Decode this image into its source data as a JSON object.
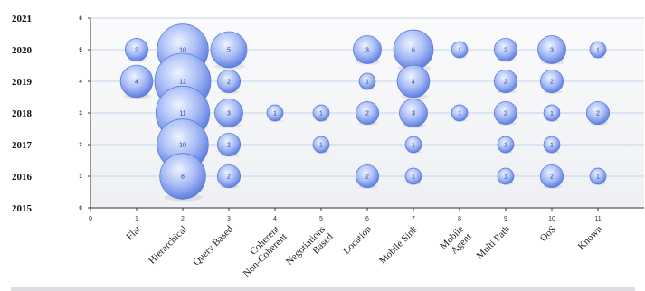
{
  "chart_data": {
    "type": "bubble",
    "title": "",
    "xlabel": "",
    "ylabel": "",
    "x_ticks": [
      0,
      1,
      2,
      3,
      4,
      5,
      6,
      7,
      8,
      9,
      10,
      11
    ],
    "y_ticks": [
      0,
      1,
      2,
      3,
      4,
      5,
      6
    ],
    "xlim": [
      0,
      12
    ],
    "ylim": [
      0,
      6
    ],
    "year_labels": [
      "2015",
      "2016",
      "2017",
      "2018",
      "2019",
      "2020",
      "2021"
    ],
    "categories": [
      "Flat",
      "Hierarchical",
      "Query Based",
      "Coherent Non-Coherent",
      "Negotiations Based",
      "Location",
      "Mobile Sink",
      "Mobile Agent",
      "Multi Path",
      "QoS",
      "Known"
    ],
    "grid": true,
    "colors": {
      "bubble": "#9fb6f5",
      "bubble_dark": "#5c7de0",
      "grid": "#c7d3ea",
      "plot_bg": "#f7f8fa"
    },
    "points": [
      {
        "x": 1,
        "y": 5,
        "size": 2
      },
      {
        "x": 1,
        "y": 4,
        "size": 4
      },
      {
        "x": 2,
        "y": 5,
        "size": 10
      },
      {
        "x": 2,
        "y": 4,
        "size": 12
      },
      {
        "x": 2,
        "y": 3,
        "size": 11
      },
      {
        "x": 2,
        "y": 2,
        "size": 10
      },
      {
        "x": 2,
        "y": 1,
        "size": 8
      },
      {
        "x": 3,
        "y": 5,
        "size": 5
      },
      {
        "x": 3,
        "y": 4,
        "size": 2
      },
      {
        "x": 3,
        "y": 3,
        "size": 3
      },
      {
        "x": 3,
        "y": 2,
        "size": 2
      },
      {
        "x": 3,
        "y": 1,
        "size": 2
      },
      {
        "x": 4,
        "y": 3,
        "size": 1
      },
      {
        "x": 5,
        "y": 3,
        "size": 1
      },
      {
        "x": 5,
        "y": 2,
        "size": 1
      },
      {
        "x": 6,
        "y": 5,
        "size": 3
      },
      {
        "x": 6,
        "y": 4,
        "size": 1
      },
      {
        "x": 6,
        "y": 3,
        "size": 2
      },
      {
        "x": 6,
        "y": 1,
        "size": 2
      },
      {
        "x": 7,
        "y": 5,
        "size": 6
      },
      {
        "x": 7,
        "y": 4,
        "size": 4
      },
      {
        "x": 7,
        "y": 3,
        "size": 3
      },
      {
        "x": 7,
        "y": 2,
        "size": 1
      },
      {
        "x": 7,
        "y": 1,
        "size": 1
      },
      {
        "x": 8,
        "y": 5,
        "size": 1
      },
      {
        "x": 8,
        "y": 3,
        "size": 1
      },
      {
        "x": 9,
        "y": 5,
        "size": 2
      },
      {
        "x": 9,
        "y": 4,
        "size": 2
      },
      {
        "x": 9,
        "y": 3,
        "size": 2
      },
      {
        "x": 9,
        "y": 2,
        "size": 1
      },
      {
        "x": 9,
        "y": 1,
        "size": 1
      },
      {
        "x": 10,
        "y": 5,
        "size": 3
      },
      {
        "x": 10,
        "y": 4,
        "size": 2
      },
      {
        "x": 10,
        "y": 3,
        "size": 1
      },
      {
        "x": 10,
        "y": 2,
        "size": 1
      },
      {
        "x": 10,
        "y": 1,
        "size": 2
      },
      {
        "x": 11,
        "y": 5,
        "size": 1
      },
      {
        "x": 11,
        "y": 3,
        "size": 2
      },
      {
        "x": 11,
        "y": 1,
        "size": 1
      }
    ]
  }
}
